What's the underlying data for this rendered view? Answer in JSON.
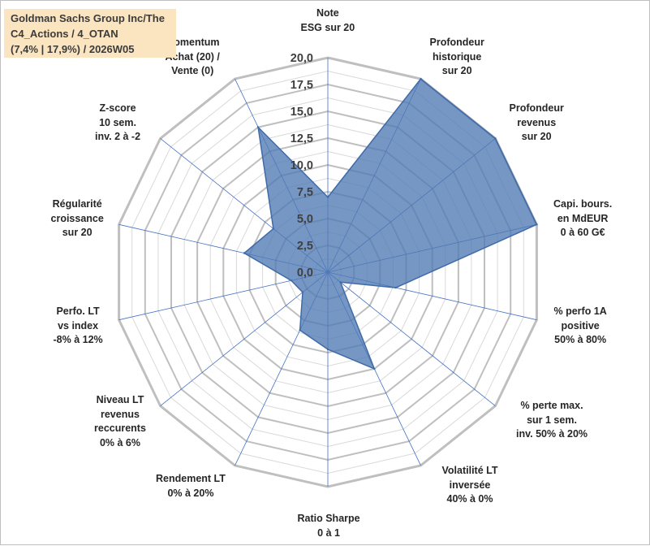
{
  "title": {
    "lines": [
      "Goldman Sachs Group Inc/The",
      "C4_Actions / 4_OTAN",
      "(7,4% | 17,9%) / 2026W05"
    ]
  },
  "colors": {
    "fill": "#4f7ab3",
    "fill_opacity": "0.78",
    "stroke": "#3f6aa8",
    "grid_outer": "#bfbfbf",
    "grid_inner": "#d9d9d9",
    "spoke": "#4472c4",
    "title_bg": "#fbe5c0",
    "text": "#262626"
  },
  "chart_data": {
    "type": "radar",
    "r_min": 0,
    "r_max": 20,
    "r_step": 1.25,
    "tick_labels": [
      "0,0",
      "2,5",
      "5,0",
      "7,5",
      "10,0",
      "12,5",
      "15,0",
      "17,5",
      "20,0"
    ],
    "axes": [
      {
        "lines": [
          "Note",
          "ESG sur 20"
        ],
        "value": 7
      },
      {
        "lines": [
          "Profondeur",
          "historique",
          "sur 20"
        ],
        "value": 20
      },
      {
        "lines": [
          "Profondeur",
          "revenus",
          "sur 20"
        ],
        "value": 20
      },
      {
        "lines": [
          "Capi. bours.",
          "en MdEUR",
          "0 à 60 G€"
        ],
        "value": 20
      },
      {
        "lines": [
          "% perfo 1A",
          "positive",
          "50% à 80%"
        ],
        "value": 6.5
      },
      {
        "lines": [
          "% perte max.",
          "sur 1 sem.",
          "inv. 50% à 20%"
        ],
        "value": 1.5
      },
      {
        "lines": [
          "Volatilité LT",
          "inversée",
          "40% à 0%"
        ],
        "value": 10
      },
      {
        "lines": [
          "Ratio Sharpe",
          "0 à 1"
        ],
        "value": 7.2
      },
      {
        "lines": [
          "Rendement LT",
          "0% à 20%"
        ],
        "value": 6
      },
      {
        "lines": [
          "Niveau LT",
          "revenus",
          "reccurents",
          "0% à 6%"
        ],
        "value": 3
      },
      {
        "lines": [
          "Perfo. LT",
          "vs index",
          "-8% à 12%"
        ],
        "value": 3.5
      },
      {
        "lines": [
          "Régularité",
          "croissance",
          "sur 20"
        ],
        "value": 8
      },
      {
        "lines": [
          "Z-score",
          "10 sem.",
          "inv. 2 à -2"
        ],
        "value": 6.5
      },
      {
        "lines": [
          "Momentum",
          "Achat (20) /",
          "Vente (0)"
        ],
        "value": 15
      }
    ]
  }
}
